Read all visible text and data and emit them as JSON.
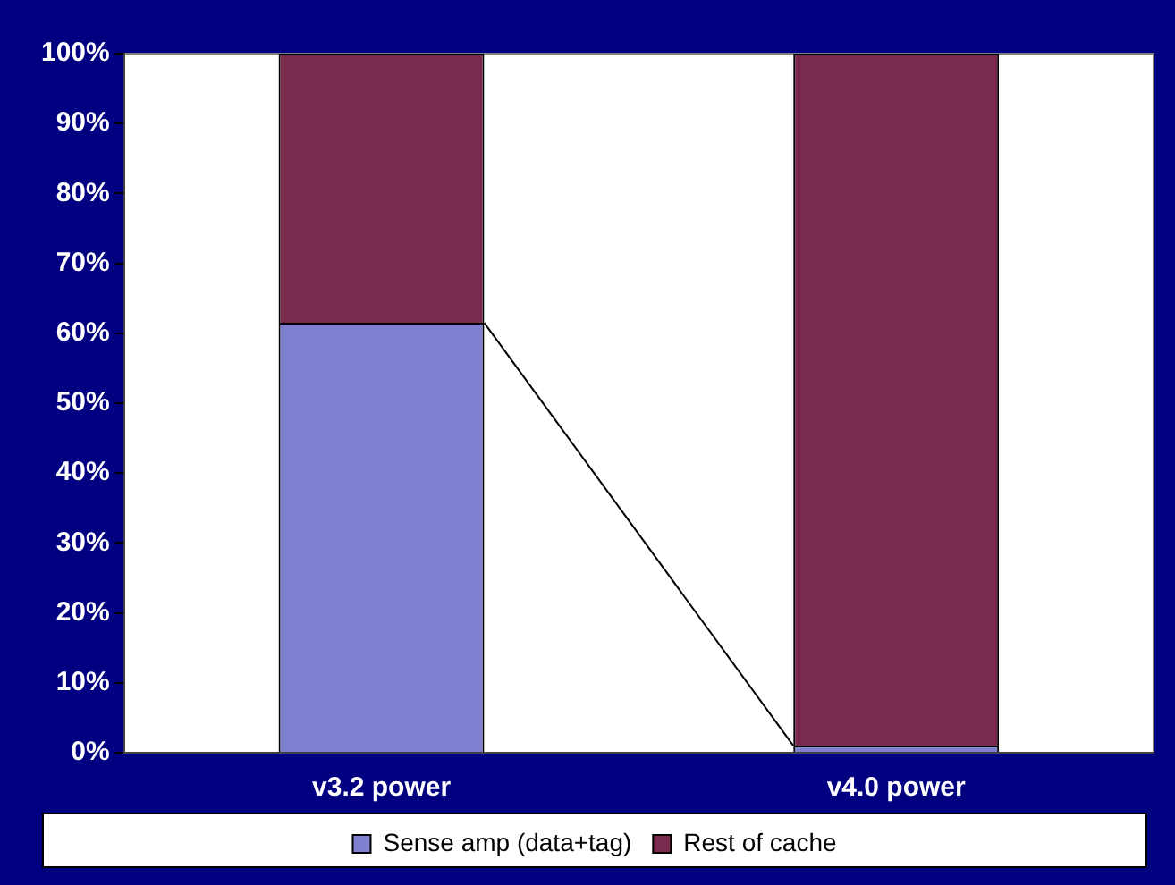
{
  "chart_data": {
    "type": "bar",
    "stacked": true,
    "categories": [
      "v3.2 power",
      "v4.0 power"
    ],
    "series": [
      {
        "name": "Sense amp (data+tag)",
        "color": "#8080d0",
        "values": [
          61.5,
          1
        ]
      },
      {
        "name": "Rest of cache",
        "color": "#7a2a4c",
        "values": [
          38.5,
          99
        ]
      }
    ],
    "ylim": [
      0,
      100
    ],
    "yticks": [
      {
        "value": 0,
        "label": "0%"
      },
      {
        "value": 10,
        "label": "10%"
      },
      {
        "value": 20,
        "label": "20%"
      },
      {
        "value": 30,
        "label": "30%"
      },
      {
        "value": 40,
        "label": "40%"
      },
      {
        "value": 50,
        "label": "50%"
      },
      {
        "value": 60,
        "label": "60%"
      },
      {
        "value": 70,
        "label": "70%"
      },
      {
        "value": 80,
        "label": "80%"
      },
      {
        "value": 90,
        "label": "90%"
      },
      {
        "value": 100,
        "label": "100%"
      }
    ],
    "grid": false,
    "legend": "bottom"
  }
}
